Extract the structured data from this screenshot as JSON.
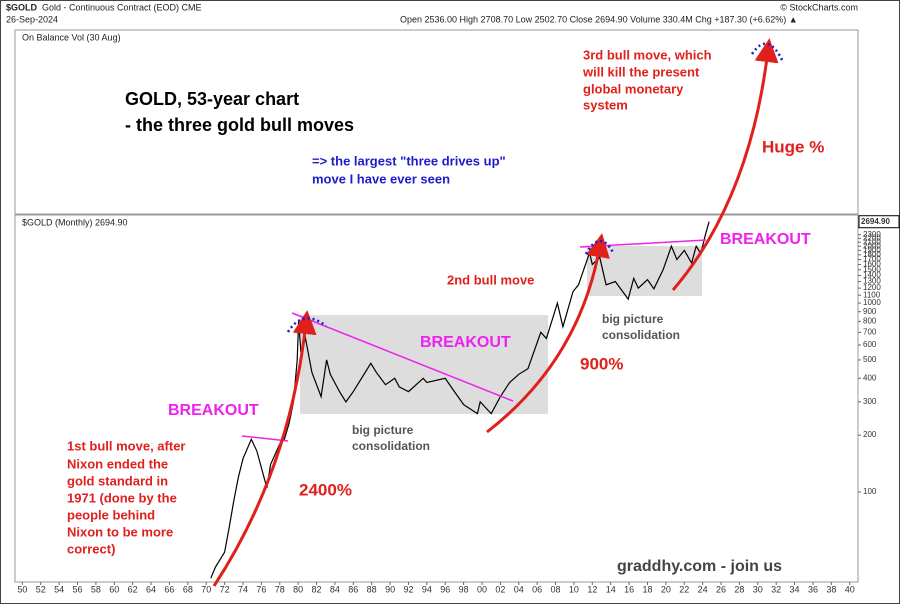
{
  "header": {
    "symbol": "$GOLD",
    "name": "Gold - Continuous Contract (EOD) CME",
    "date": "26-Sep-2024",
    "quote": "Open 2536.00  High 2708.70  Low 2502.70  Close 2694.90  Volume 330.4M  Chg +187.30 (+6.62%) ▲",
    "source": "© StockCharts.com",
    "indicator": "On Balance Vol (30 Aug)"
  },
  "chart_data": {
    "type": "line",
    "series_label": "$GOLD (Monthly) 2694.90",
    "color": "#000000",
    "log_y": true,
    "last_value": {
      "value": 2694.9,
      "label": "2694.90"
    },
    "x": [
      1970.5,
      1971,
      1972,
      1972.5,
      1973,
      1973.5,
      1974,
      1974.9,
      1975.5,
      1976.6,
      1977,
      1978,
      1978.5,
      1979,
      1979.5,
      1979.9,
      1980.05,
      1980.3,
      1980.8,
      1981.5,
      1982.5,
      1983.1,
      1983.5,
      1984.5,
      1985.2,
      1986,
      1987.9,
      1988.5,
      1989.5,
      1990.5,
      1991,
      1992,
      1993.6,
      1994,
      1996,
      1997,
      1998,
      1999.5,
      1999.8,
      2001,
      2002,
      2003,
      2004,
      2005,
      2006.4,
      2007,
      2008.2,
      2008.8,
      2009.9,
      2010.5,
      2011.7,
      2012,
      2012.8,
      2013.5,
      2014.5,
      2015.9,
      2016.5,
      2017,
      2018,
      2018.7,
      2019.7,
      2020.6,
      2021.2,
      2022,
      2022.8,
      2023.3,
      2023.8,
      2024.3,
      2024.7
    ],
    "values": [
      35,
      40,
      48,
      65,
      90,
      120,
      150,
      190,
      165,
      105,
      140,
      180,
      190,
      230,
      300,
      500,
      800,
      550,
      650,
      430,
      320,
      500,
      420,
      340,
      300,
      340,
      480,
      430,
      370,
      400,
      360,
      340,
      400,
      380,
      400,
      340,
      290,
      260,
      300,
      260,
      320,
      380,
      420,
      450,
      700,
      650,
      1000,
      750,
      1150,
      1250,
      1850,
      1600,
      1750,
      1250,
      1300,
      1050,
      1350,
      1200,
      1330,
      1190,
      1500,
      2000,
      1700,
      1900,
      1630,
      2000,
      1830,
      2300,
      2694.9
    ],
    "xlim": [
      1949.2,
      2040.9
    ],
    "ylim": [
      33.4,
      2925
    ],
    "xticks": [
      {
        "value": 1950,
        "label": "50"
      },
      {
        "value": 1952,
        "label": "52"
      },
      {
        "value": 1954,
        "label": "54"
      },
      {
        "value": 1956,
        "label": "56"
      },
      {
        "value": 1958,
        "label": "58"
      },
      {
        "value": 1960,
        "label": "60"
      },
      {
        "value": 1962,
        "label": "62"
      },
      {
        "value": 1964,
        "label": "64"
      },
      {
        "value": 1966,
        "label": "66"
      },
      {
        "value": 1968,
        "label": "68"
      },
      {
        "value": 1970,
        "label": "70"
      },
      {
        "value": 1972,
        "label": "72"
      },
      {
        "value": 1974,
        "label": "74"
      },
      {
        "value": 1976,
        "label": "76"
      },
      {
        "value": 1978,
        "label": "78"
      },
      {
        "value": 1980,
        "label": "80"
      },
      {
        "value": 1982,
        "label": "82"
      },
      {
        "value": 1984,
        "label": "84"
      },
      {
        "value": 1986,
        "label": "86"
      },
      {
        "value": 1988,
        "label": "88"
      },
      {
        "value": 1990,
        "label": "90"
      },
      {
        "value": 1992,
        "label": "92"
      },
      {
        "value": 1994,
        "label": "94"
      },
      {
        "value": 1996,
        "label": "96"
      },
      {
        "value": 1998,
        "label": "98"
      },
      {
        "value": 2000,
        "label": "00"
      },
      {
        "value": 2002,
        "label": "02"
      },
      {
        "value": 2004,
        "label": "04"
      },
      {
        "value": 2006,
        "label": "06"
      },
      {
        "value": 2008,
        "label": "08"
      },
      {
        "value": 2010,
        "label": "10"
      },
      {
        "value": 2012,
        "label": "12"
      },
      {
        "value": 2014,
        "label": "14"
      },
      {
        "value": 2016,
        "label": "16"
      },
      {
        "value": 2018,
        "label": "18"
      },
      {
        "value": 2020,
        "label": "20"
      },
      {
        "value": 2022,
        "label": "22"
      },
      {
        "value": 2024,
        "label": "24"
      },
      {
        "value": 2026,
        "label": "26"
      },
      {
        "value": 2028,
        "label": "28"
      },
      {
        "value": 2030,
        "label": "30"
      },
      {
        "value": 2032,
        "label": "32"
      },
      {
        "value": 2034,
        "label": "34"
      },
      {
        "value": 2036,
        "label": "36"
      },
      {
        "value": 2038,
        "label": "38"
      },
      {
        "value": 2040,
        "label": "40"
      }
    ],
    "yticks": [
      100,
      200,
      300,
      400,
      500,
      600,
      700,
      800,
      900,
      1000,
      1100,
      1200,
      1300,
      1400,
      1500,
      1600,
      1700,
      1800,
      1900,
      2000,
      2100,
      2200,
      2300
    ],
    "annotations": [
      {
        "lines": [
          "GOLD, 53-year chart",
          "- the three gold bull moves"
        ]
      },
      {
        "lines": [
          "=> the largest \"three drives up\"",
          "move I have ever seen"
        ]
      },
      {
        "lines": [
          "3rd bull move, which",
          "will kill the present",
          "global monetary",
          "system"
        ]
      },
      {
        "lines": [
          "Huge %"
        ]
      },
      {
        "lines": [
          "BREAKOUT"
        ]
      },
      {
        "lines": [
          "2nd bull move"
        ]
      },
      {
        "lines": [
          "big picture",
          "consolidation"
        ]
      },
      {
        "lines": [
          "BREAKOUT"
        ]
      },
      {
        "lines": [
          "900%"
        ]
      },
      {
        "lines": [
          "BREAKOUT"
        ]
      },
      {
        "lines": [
          "big picture",
          "consolidation"
        ]
      },
      {
        "lines": [
          "1st bull move, after",
          "Nixon ended the",
          "gold standard in",
          "1971 (done by the",
          "people behind",
          "Nixon to be more",
          "correct)"
        ]
      },
      {
        "lines": [
          "2400%"
        ]
      },
      {
        "lines": [
          "graddhy.com - join us"
        ]
      }
    ]
  }
}
